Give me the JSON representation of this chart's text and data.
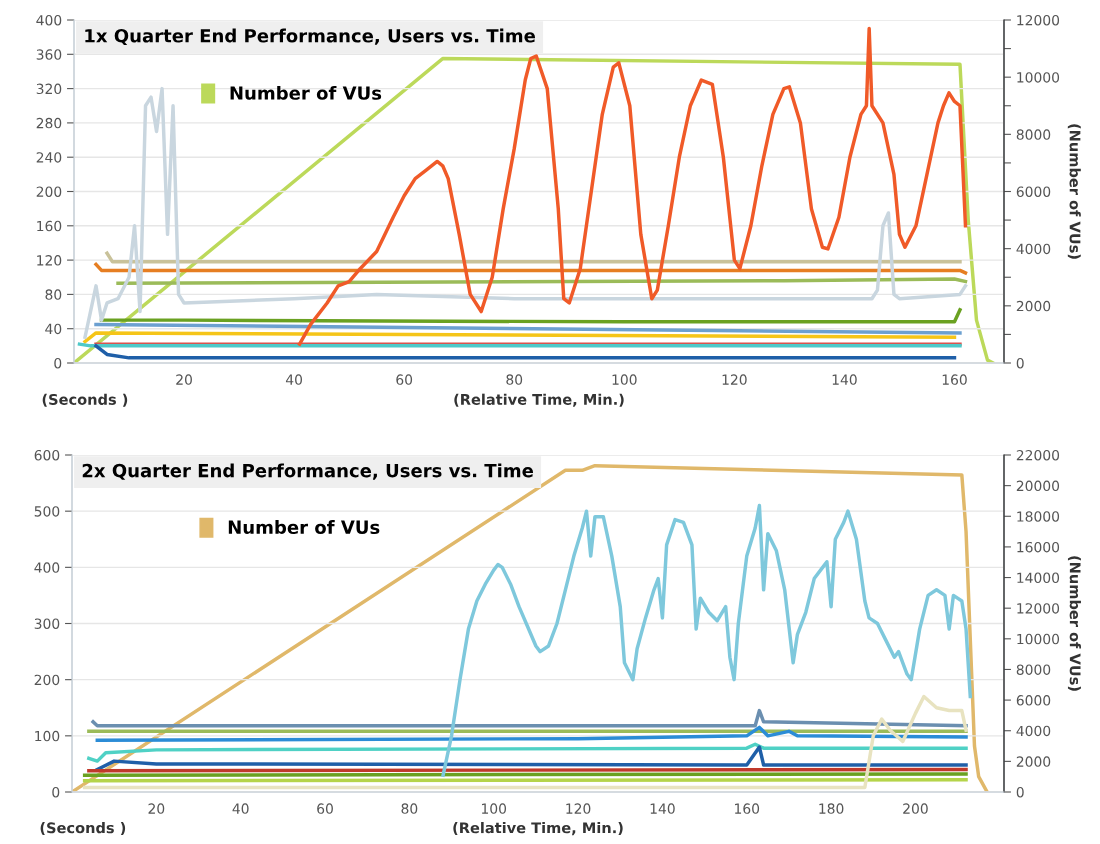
{
  "chart_data": [
    {
      "type": "line",
      "title": "1x Quarter End Performance, Users vs. Time",
      "xlabel": "(Relative Time, Min.)",
      "ylabel": "(Seconds )",
      "y2label": "(Number of VUs)",
      "xlim": [
        0,
        169
      ],
      "xticks": [
        20,
        40,
        60,
        80,
        100,
        120,
        140,
        160
      ],
      "ylim": [
        0,
        400
      ],
      "yticks": [
        0,
        40,
        80,
        120,
        160,
        200,
        240,
        280,
        320,
        360,
        400
      ],
      "y2lim": [
        0,
        12000
      ],
      "y2ticks": [
        0,
        {
          "value": 1000,
          "label": null
        },
        2000,
        {
          "value": 3000,
          "label": null
        },
        4000,
        {
          "value": 5000,
          "label": null
        },
        6000,
        {
          "value": 7000,
          "label": null
        },
        8000,
        {
          "value": 9000,
          "label": null
        },
        10000,
        {
          "value": 11000,
          "label": null
        },
        12000
      ],
      "grid": "y",
      "legend": "top left",
      "marker": "none",
      "line_style": "solid",
      "series": [
        {
          "name": "Number of VUs",
          "color": "#bcd95a",
          "axis": "y2",
          "x": [
            0,
            67,
            161,
            162.5,
            164,
            166,
            167
          ],
          "values": [
            0,
            10650,
            10450,
            5000,
            1500,
            100,
            0
          ]
        },
        {
          "color": "#c9c29a",
          "x": [
            6,
            7,
            161
          ],
          "values": [
            128,
            118,
            118
          ]
        },
        {
          "color": "#e67e22",
          "x": [
            4,
            5,
            161,
            162
          ],
          "values": [
            115,
            108,
            108,
            105
          ]
        },
        {
          "color": "#9bbb59",
          "x": [
            8,
            129,
            160,
            162
          ],
          "values": [
            93,
            96,
            98,
            95
          ]
        },
        {
          "color": "#6aa121",
          "x": [
            5,
            20,
            100,
            160,
            161
          ],
          "values": [
            50,
            50,
            48,
            48,
            62
          ]
        },
        {
          "color": "#6ca0d0",
          "x": [
            4,
            161
          ],
          "values": [
            45,
            35
          ]
        },
        {
          "color": "#f5c518",
          "x": [
            2,
            4,
            160
          ],
          "values": [
            25,
            35,
            30
          ]
        },
        {
          "color": "#d9534f",
          "x": [
            4,
            161
          ],
          "values": [
            22,
            22
          ]
        },
        {
          "color": "#4ec9c9",
          "x": [
            1,
            3,
            161
          ],
          "values": [
            22,
            20,
            20
          ]
        },
        {
          "color": "#1f5fa8",
          "x": [
            4,
            6,
            10,
            160
          ],
          "values": [
            20,
            10,
            6,
            6
          ]
        },
        {
          "color": "#c9d6df",
          "x": [
            2,
            3,
            4,
            5,
            6,
            8,
            10,
            11,
            12,
            13,
            14,
            15,
            16,
            17,
            18,
            19,
            20,
            40,
            55,
            80,
            145,
            146,
            147,
            148,
            149,
            150,
            161,
            162
          ],
          "values": [
            30,
            60,
            90,
            50,
            70,
            75,
            100,
            160,
            60,
            300,
            310,
            270,
            320,
            150,
            300,
            80,
            70,
            75,
            80,
            75,
            75,
            85,
            160,
            175,
            80,
            75,
            80,
            90
          ]
        },
        {
          "color": "#f05a28",
          "x": [
            41,
            43,
            46,
            48,
            50,
            52,
            55,
            58,
            60,
            62,
            64,
            66,
            67,
            68,
            70,
            72,
            74,
            76,
            78,
            80,
            82,
            83,
            84,
            86,
            88,
            89,
            90,
            92,
            94,
            96,
            98,
            99,
            101,
            103,
            105,
            106,
            108,
            110,
            112,
            114,
            116,
            118,
            120,
            121,
            123,
            125,
            127,
            129,
            130,
            132,
            134,
            136,
            137,
            139,
            141,
            143,
            144,
            144.5,
            145,
            147,
            149,
            150,
            151,
            153,
            155,
            157,
            158,
            159,
            160,
            161,
            162
          ],
          "values": [
            22,
            45,
            70,
            90,
            95,
            110,
            130,
            170,
            195,
            215,
            225,
            235,
            230,
            215,
            150,
            80,
            60,
            100,
            180,
            250,
            330,
            355,
            358,
            320,
            180,
            75,
            70,
            110,
            200,
            290,
            345,
            350,
            300,
            150,
            75,
            85,
            160,
            240,
            300,
            330,
            325,
            240,
            120,
            110,
            160,
            230,
            290,
            320,
            322,
            280,
            180,
            135,
            133,
            170,
            240,
            290,
            300,
            390,
            300,
            280,
            220,
            150,
            135,
            160,
            220,
            280,
            300,
            315,
            305,
            300,
            160
          ]
        }
      ]
    },
    {
      "type": "line",
      "title": "2x Quarter End Performance, Users vs. Time",
      "xlabel": "(Relative Time, Min.)",
      "ylabel": "(Seconds )",
      "y2label": "(Number of VUs)",
      "xlim": [
        0,
        221
      ],
      "xticks": [
        20,
        40,
        60,
        80,
        100,
        120,
        140,
        160,
        180,
        200
      ],
      "ylim": [
        0,
        600
      ],
      "yticks": [
        0,
        100,
        200,
        300,
        400,
        500,
        600
      ],
      "y2lim": [
        0,
        22000
      ],
      "y2ticks": [
        0,
        2000,
        4000,
        6000,
        8000,
        10000,
        12000,
        14000,
        16000,
        18000,
        20000,
        22000
      ],
      "grid": "y",
      "legend": "top left",
      "marker": "none",
      "line_style": "solid",
      "series": [
        {
          "name": "Number of VUs",
          "color": "#e0b86a",
          "axis": "y2",
          "x": [
            0,
            117,
            121,
            124,
            211,
            212,
            214,
            215,
            217
          ],
          "values": [
            0,
            21000,
            21000,
            21300,
            20700,
            17000,
            3000,
            1000,
            0
          ]
        },
        {
          "color": "#6b8fb0",
          "x": [
            5,
            6,
            162,
            163,
            164,
            212
          ],
          "values": [
            125,
            118,
            118,
            145,
            125,
            118
          ]
        },
        {
          "color": "#9bbb59",
          "x": [
            4,
            212
          ],
          "values": [
            108,
            108
          ]
        },
        {
          "color": "#2b8cd6",
          "x": [
            6,
            120,
            160,
            163,
            165,
            170,
            172,
            212
          ],
          "values": [
            92,
            95,
            100,
            115,
            100,
            108,
            100,
            98
          ]
        },
        {
          "color": "#4fd1c5",
          "x": [
            4,
            6,
            8,
            20,
            160,
            162,
            164,
            212
          ],
          "values": [
            60,
            55,
            70,
            75,
            78,
            85,
            78,
            78
          ]
        },
        {
          "color": "#1f5fa8",
          "x": [
            6,
            10,
            20,
            160,
            163,
            164,
            212
          ],
          "values": [
            40,
            55,
            50,
            48,
            80,
            48,
            48
          ]
        },
        {
          "color": "#c0392b",
          "x": [
            4,
            212
          ],
          "values": [
            38,
            40
          ]
        },
        {
          "color": "#6aa121",
          "x": [
            3,
            212
          ],
          "values": [
            30,
            32
          ]
        },
        {
          "color": "#b5d44a",
          "x": [
            3,
            212
          ],
          "values": [
            20,
            22
          ]
        },
        {
          "color": "#e8e3c0",
          "x": [
            3,
            188,
            190,
            192,
            194,
            197,
            200,
            202,
            205,
            208,
            211,
            212
          ],
          "values": [
            8,
            8,
            100,
            130,
            110,
            90,
            140,
            170,
            150,
            145,
            145,
            110
          ]
        },
        {
          "color": "#7ec8dc",
          "x": [
            88,
            90,
            92,
            94,
            96,
            98,
            100,
            101,
            102,
            104,
            106,
            108,
            110,
            111,
            113,
            115,
            117,
            119,
            121,
            122,
            123,
            124,
            126,
            128,
            130,
            131,
            132,
            133,
            134,
            136,
            138,
            139,
            140,
            141,
            143,
            145,
            147,
            148,
            149,
            151,
            153,
            155,
            156,
            157,
            158,
            160,
            162,
            163,
            164,
            165,
            167,
            169,
            171,
            172,
            174,
            176,
            178,
            179,
            180,
            181,
            183,
            184,
            186,
            188,
            189,
            191,
            193,
            195,
            196,
            198,
            199,
            201,
            203,
            205,
            207,
            208,
            209,
            211,
            212,
            213
          ],
          "values": [
            30,
            100,
            200,
            290,
            340,
            370,
            395,
            405,
            400,
            370,
            330,
            295,
            260,
            250,
            260,
            300,
            360,
            420,
            470,
            500,
            420,
            490,
            490,
            420,
            330,
            230,
            215,
            200,
            255,
            310,
            360,
            380,
            310,
            440,
            485,
            480,
            440,
            290,
            345,
            320,
            305,
            330,
            240,
            200,
            300,
            420,
            470,
            510,
            360,
            460,
            430,
            360,
            230,
            280,
            320,
            380,
            400,
            410,
            330,
            450,
            480,
            500,
            450,
            340,
            310,
            300,
            270,
            240,
            250,
            210,
            200,
            290,
            350,
            360,
            350,
            290,
            350,
            340,
            290,
            170
          ]
        }
      ]
    }
  ]
}
